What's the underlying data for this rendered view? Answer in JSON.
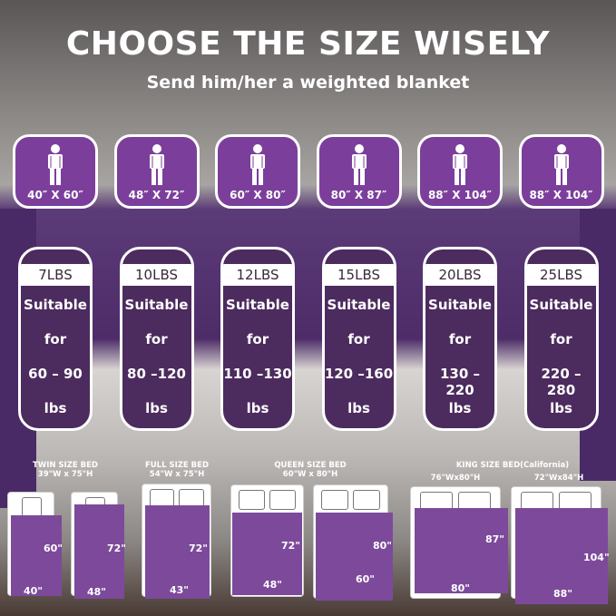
{
  "title": "CHOOSE THE SIZE WISELY",
  "subtitle": "Send him/her a weighted blanket",
  "colors": {
    "card_purple": "#7b3f9b",
    "weight_card": "#4c2b5e",
    "sheet": "#7d4a9b"
  },
  "sizes": [
    "40″ X 60″",
    "48″ X 72″",
    "60″ X 80″",
    "80″ X 87″",
    "88″ X 104″",
    "88″ X 104″"
  ],
  "weights": [
    {
      "lbs": "7LBS",
      "line1": "Suitable",
      "line2": "for",
      "range": "60 – 90",
      "unit": "lbs"
    },
    {
      "lbs": "10LBS",
      "line1": "Suitable",
      "line2": "for",
      "range": "80 –120",
      "unit": "lbs"
    },
    {
      "lbs": "12LBS",
      "line1": "Suitable",
      "line2": "for",
      "range": "110 –130",
      "unit": "lbs"
    },
    {
      "lbs": "15LBS",
      "line1": "Suitable",
      "line2": "for",
      "range": "120 –160",
      "unit": "lbs"
    },
    {
      "lbs": "20LBS",
      "line1": "Suitable",
      "line2": "for",
      "range": "130 – 220",
      "unit": "lbs"
    },
    {
      "lbs": "25LBS",
      "line1": "Suitable",
      "line2": "for",
      "range": "220 – 280",
      "unit": "lbs"
    }
  ],
  "beds": {
    "twin": {
      "name": "TWIN SIZE BED",
      "dims": "39\"W x 75\"H"
    },
    "full": {
      "name": "FULL SIZE BED",
      "dims": "54\"W x 75\"H"
    },
    "queen": {
      "name": "QUEEN SIZE BED",
      "dims": "60\"W x 80\"H"
    },
    "king": {
      "name": "KING SIZE BED(California)",
      "dims1": "76\"Wx80\"H",
      "dims2": "72\"Wx84\"H"
    }
  },
  "diagrams": [
    {
      "h": "60\"",
      "w": "40\""
    },
    {
      "h": "72\"",
      "w": "48\""
    },
    {
      "h": "72\"",
      "w": "43\""
    },
    {
      "h": "72\"",
      "w": "48\""
    },
    {
      "h": "80\"",
      "w": "60\""
    },
    {
      "h": "87\"",
      "w": "80\""
    },
    {
      "h": "104\"",
      "w": "88\""
    }
  ]
}
